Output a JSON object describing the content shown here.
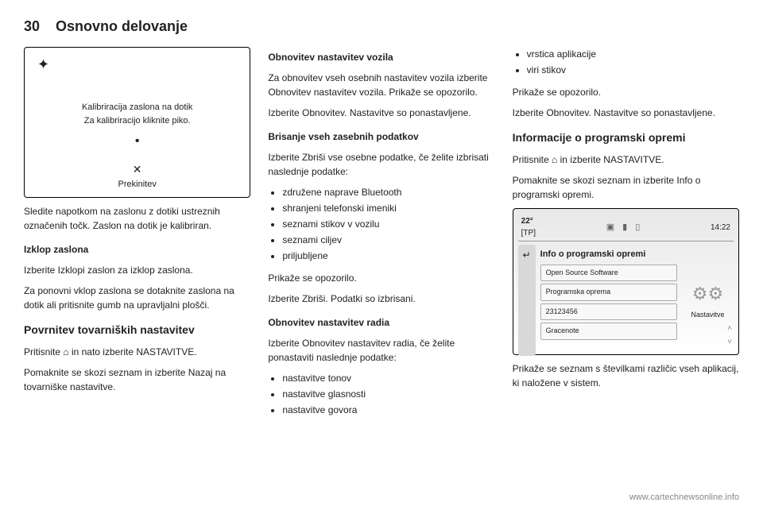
{
  "header": {
    "pageNumber": "30",
    "title": "Osnovno delovanje"
  },
  "col1": {
    "screen": {
      "calibTitle": "Kalibriracija zaslona na dotik",
      "calibInstruction": "Za kalibriracijo kliknite piko.",
      "cancel": "Prekinitev"
    },
    "para1": "Sledite napotkom na zaslonu z dotiki ustreznih označenih točk. Zaslon na dotik je kalibriran.",
    "sub1": "Izklop zaslona",
    "para2": "Izberite Izklopi zaslon za izklop zaslona.",
    "para3": "Za ponovni vklop zaslona se dotaknite zaslona na dotik ali pritisnite gumb na upravljalni plošči.",
    "head1": "Povrnitev tovarniških nastavitev",
    "para4a": "Pritisnite ",
    "para4b": " in nato izberite NASTAVITVE.",
    "para5": "Pomaknite se skozi seznam in izberite Nazaj na tovarniške nastavitve."
  },
  "col2": {
    "sub1": "Obnovitev nastavitev vozila",
    "para1": "Za obnovitev vseh osebnih nastavitev vozila izberite Obnovitev nastavitev vozila. Prikaže se opozorilo.",
    "para2": "Izberite Obnovitev. Nastavitve so ponastavljene.",
    "sub2": "Brisanje vseh zasebnih podatkov",
    "para3": "Izberite Zbriši vse osebne podatke, če želite izbrisati naslednje podatke:",
    "list1": [
      "združene naprave Bluetooth",
      "shranjeni telefonski imeniki",
      "seznami stikov v vozilu",
      "seznami ciljev",
      "priljubljene"
    ],
    "para4": "Prikaže se opozorilo.",
    "para5": "Izberite Zbriši. Podatki so izbrisani.",
    "sub3": "Obnovitev nastavitev radia",
    "para6": "Izberite Obnovitev nastavitev radia, če želite ponastaviti naslednje podatke:",
    "list2": [
      "nastavitve tonov",
      "nastavitve glasnosti",
      "nastavitve govora"
    ]
  },
  "col3": {
    "list1": [
      "vrstica aplikacije",
      "viri stikov"
    ],
    "para1": "Prikaže se opozorilo.",
    "para2": "Izberite Obnovitev. Nastavitve so ponastavljene.",
    "head1": "Informacije o programski opremi",
    "para3a": "Pritisnite ",
    "para3b": " in izberite NASTAVITVE.",
    "para4": "Pomaknite se skozi seznam in izberite Info o programski opremi.",
    "ui": {
      "temp": "22°",
      "tp": "[TP]",
      "time": "14:22",
      "title": "Info o programski opremi",
      "items": [
        "Open Source Software",
        "Programska oprema",
        "23123456",
        "Gracenote"
      ],
      "rightLabel": "Nastavitve"
    },
    "para5": "Prikaže se seznam s številkami različic vseh aplikacij, ki naložene v sistem."
  },
  "footer": "www.cartechnewsonline.info"
}
